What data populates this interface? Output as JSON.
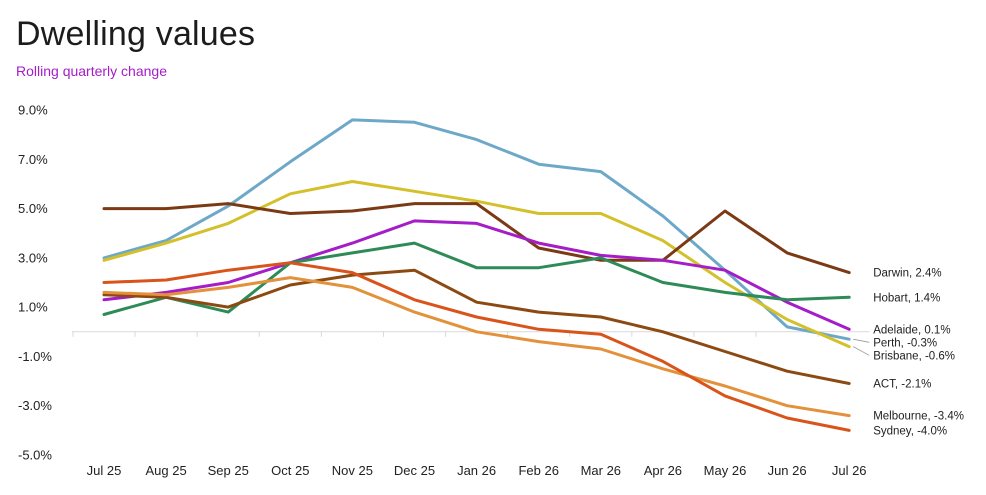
{
  "header": {
    "title": "Dwelling values",
    "subtitle": "Rolling quarterly change"
  },
  "colors": {
    "subtitle": "#a51cc9",
    "gridline": "#d9d9d9"
  },
  "chart_data": {
    "type": "line",
    "title": "Dwelling values",
    "subtitle": "Rolling quarterly change",
    "xlabel": "",
    "ylabel": "",
    "ylim": [
      -5.0,
      9.0
    ],
    "yticks": [
      {
        "value": 9.0,
        "label": "9.0%"
      },
      {
        "value": 7.0,
        "label": "7.0%"
      },
      {
        "value": 5.0,
        "label": "5.0%"
      },
      {
        "value": 3.0,
        "label": "3.0%"
      },
      {
        "value": 1.0,
        "label": "1.0%"
      },
      {
        "value": -1.0,
        "label": "-1.0%"
      },
      {
        "value": -3.0,
        "label": "-3.0%"
      },
      {
        "value": -5.0,
        "label": "-5.0%"
      }
    ],
    "categories": [
      "Jul 25",
      "Aug 25",
      "Sep 25",
      "Oct 25",
      "Nov 25",
      "Dec 25",
      "Jan 26",
      "Feb 26",
      "Mar 26",
      "Apr 26",
      "May 26",
      "Jun 26",
      "Jul 26"
    ],
    "grid": "horizontal baseline at 0 with vertical tick marks",
    "legend": "end-of-line labels on right",
    "series": [
      {
        "name": "Perth",
        "label": "Perth, -0.3%",
        "color": "#6ea8c8",
        "values": [
          3.0,
          3.7,
          5.1,
          6.9,
          8.6,
          8.5,
          7.8,
          6.8,
          6.5,
          4.7,
          2.5,
          0.2,
          -0.3
        ]
      },
      {
        "name": "Brisbane",
        "label": "Brisbane, -0.6%",
        "color": "#d4c02b",
        "values": [
          2.9,
          3.6,
          4.4,
          5.6,
          6.1,
          5.7,
          5.3,
          4.8,
          4.8,
          3.7,
          2.0,
          0.5,
          -0.6
        ]
      },
      {
        "name": "Darwin",
        "label": "Darwin, 2.4%",
        "color": "#7b3a14",
        "values": [
          5.0,
          5.0,
          5.2,
          4.8,
          4.9,
          5.2,
          5.2,
          3.4,
          2.9,
          2.9,
          4.9,
          3.2,
          2.4
        ]
      },
      {
        "name": "Adelaide",
        "label": "Adelaide, 0.1%",
        "color": "#a51cc9",
        "values": [
          1.3,
          1.6,
          2.0,
          2.8,
          3.6,
          4.5,
          4.4,
          3.6,
          3.1,
          2.9,
          2.5,
          1.2,
          0.1
        ]
      },
      {
        "name": "Hobart",
        "label": "Hobart, 1.4%",
        "color": "#2e8b57",
        "values": [
          0.7,
          1.4,
          0.8,
          2.8,
          3.2,
          3.6,
          2.6,
          2.6,
          3.0,
          2.0,
          1.6,
          1.3,
          1.4
        ]
      },
      {
        "name": "ACT",
        "label": "ACT, -2.1%",
        "color": "#8c4a12",
        "values": [
          1.5,
          1.4,
          1.0,
          1.9,
          2.3,
          2.5,
          1.2,
          0.8,
          0.6,
          0.0,
          -0.8,
          -1.6,
          -2.1
        ]
      },
      {
        "name": "Melbourne",
        "label": "Melbourne, -3.4%",
        "color": "#e3913a",
        "values": [
          1.6,
          1.5,
          1.8,
          2.2,
          1.8,
          0.8,
          0.0,
          -0.4,
          -0.7,
          -1.5,
          -2.2,
          -3.0,
          -3.4
        ]
      },
      {
        "name": "Sydney",
        "label": "Sydney, -4.0%",
        "color": "#d9541a",
        "values": [
          2.0,
          2.1,
          2.5,
          2.8,
          2.4,
          1.3,
          0.6,
          0.1,
          -0.1,
          -1.2,
          -2.6,
          -3.5,
          -4.0
        ]
      }
    ]
  }
}
